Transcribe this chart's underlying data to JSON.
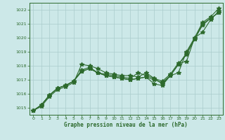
{
  "xlabel": "Graphe pression niveau de la mer (hPa)",
  "ylim": [
    1014.5,
    1022.5
  ],
  "xlim": [
    -0.5,
    23.5
  ],
  "yticks": [
    1015,
    1016,
    1017,
    1018,
    1019,
    1020,
    1021,
    1022
  ],
  "xticks": [
    0,
    1,
    2,
    3,
    4,
    5,
    6,
    7,
    8,
    9,
    10,
    11,
    12,
    13,
    14,
    15,
    16,
    17,
    18,
    19,
    20,
    21,
    22,
    23
  ],
  "bg_color": "#cce8e8",
  "grid_color": "#aacccc",
  "line_color": "#2d6a2d",
  "line1": [
    1014.8,
    1015.1,
    1015.8,
    1016.3,
    1016.5,
    1016.8,
    1018.1,
    1018.0,
    1017.8,
    1017.5,
    1017.4,
    1017.3,
    1017.3,
    1017.2,
    1017.5,
    1017.1,
    1016.7,
    1017.3,
    1017.5,
    1019.0,
    1020.0,
    1021.1,
    1021.5,
    1022.1
  ],
  "line2": [
    1014.8,
    1015.2,
    1015.9,
    1016.4,
    1016.6,
    1016.9,
    1017.7,
    1017.9,
    1017.5,
    1017.4,
    1017.3,
    1017.2,
    1017.1,
    1017.5,
    1017.3,
    1017.1,
    1016.9,
    1017.4,
    1018.2,
    1018.3,
    1020.0,
    1020.4,
    1021.3,
    1021.9
  ],
  "line3": [
    1014.8,
    1015.2,
    1015.9,
    1016.4,
    1016.6,
    1016.9,
    1017.6,
    1017.8,
    1017.5,
    1017.3,
    1017.2,
    1017.1,
    1017.0,
    1017.1,
    1017.2,
    1017.0,
    1016.8,
    1017.3,
    1018.1,
    1018.9,
    1019.9,
    1021.0,
    1021.4,
    1021.8
  ],
  "line4": [
    1014.8,
    1015.2,
    1015.9,
    1016.4,
    1016.6,
    1016.9,
    1017.6,
    1017.8,
    1017.5,
    1017.3,
    1017.2,
    1017.1,
    1017.0,
    1017.1,
    1017.2,
    1016.7,
    1016.6,
    1017.3,
    1018.1,
    1018.8,
    1019.9,
    1020.9,
    1021.4,
    1021.8
  ]
}
